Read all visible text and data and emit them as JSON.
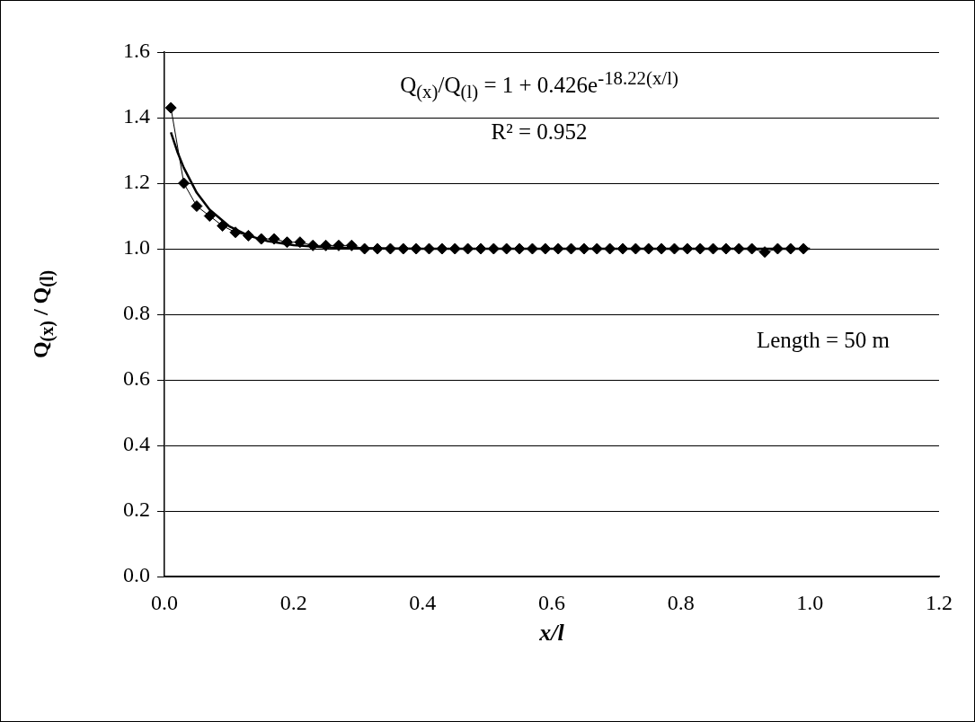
{
  "chart_data": {
    "type": "line",
    "xlabel": "x/l",
    "ylabel": "Q$_{(x)}$ / Q$_{(l)}$",
    "annotations": [
      "Q$_{(x)}$/Q$_{(l)}$ = 1 + 0.426e$^{-18.22(x/l)}$",
      "R² = 0.952",
      "Length = 50 m"
    ],
    "xlim": [
      0,
      1.2
    ],
    "xticks": [
      {
        "value": 0,
        "label": "0.0"
      },
      0.2,
      0.4,
      0.6,
      0.8,
      {
        "value": 1,
        "label": "1.0"
      },
      1.2
    ],
    "ylim": [
      0,
      1.6
    ],
    "yticks": [
      {
        "value": 0,
        "label": "0.0"
      },
      0.2,
      0.4,
      0.6,
      0.8,
      {
        "value": 1,
        "label": "1.0"
      },
      1.2,
      1.4,
      1.6
    ],
    "grid": "y",
    "legend": false,
    "marker": "diamond",
    "line_style": "solid",
    "series": [
      {
        "color": "#000000",
        "x": [
          0.01,
          0.03,
          0.05,
          0.07,
          0.09,
          0.11,
          0.13,
          0.15,
          0.17,
          0.19,
          0.21,
          0.23,
          0.25,
          0.27,
          0.29,
          0.31,
          0.33,
          0.35,
          0.37,
          0.39,
          0.41,
          0.43,
          0.45,
          0.47,
          0.49,
          0.51,
          0.53,
          0.55,
          0.57,
          0.59,
          0.61,
          0.63,
          0.65,
          0.67,
          0.69,
          0.71,
          0.73,
          0.75,
          0.77,
          0.79,
          0.81,
          0.83,
          0.85,
          0.87,
          0.89,
          0.91,
          0.93,
          0.95,
          0.97,
          0.99
        ],
        "values": [
          1.43,
          1.2,
          1.13,
          1.1,
          1.07,
          1.05,
          1.04,
          1.03,
          1.03,
          1.02,
          1.02,
          1.01,
          1.01,
          1.01,
          1.01,
          1.0,
          1.0,
          1.0,
          1.0,
          1.0,
          1.0,
          1.0,
          1.0,
          1.0,
          1.0,
          1.0,
          1.0,
          1.0,
          1.0,
          1.0,
          1.0,
          1.0,
          1.0,
          1.0,
          1.0,
          1.0,
          1.0,
          1.0,
          1.0,
          1.0,
          1.0,
          1.0,
          1.0,
          1.0,
          1.0,
          1.0,
          0.99,
          1.0,
          1.0,
          1.0
        ]
      },
      {
        "type": "line",
        "color": "#000000",
        "marker": "none",
        "x": [
          0.01,
          0.02,
          0.03,
          0.05,
          0.07,
          0.1,
          0.13,
          0.16,
          0.2,
          0.25,
          0.3,
          0.4,
          0.6,
          0.8,
          1.0
        ],
        "values": [
          1.355,
          1.296,
          1.247,
          1.171,
          1.119,
          1.069,
          1.04,
          1.023,
          1.011,
          1.004,
          1.002,
          1.0,
          1.0,
          1.0,
          1.0
        ]
      }
    ]
  }
}
